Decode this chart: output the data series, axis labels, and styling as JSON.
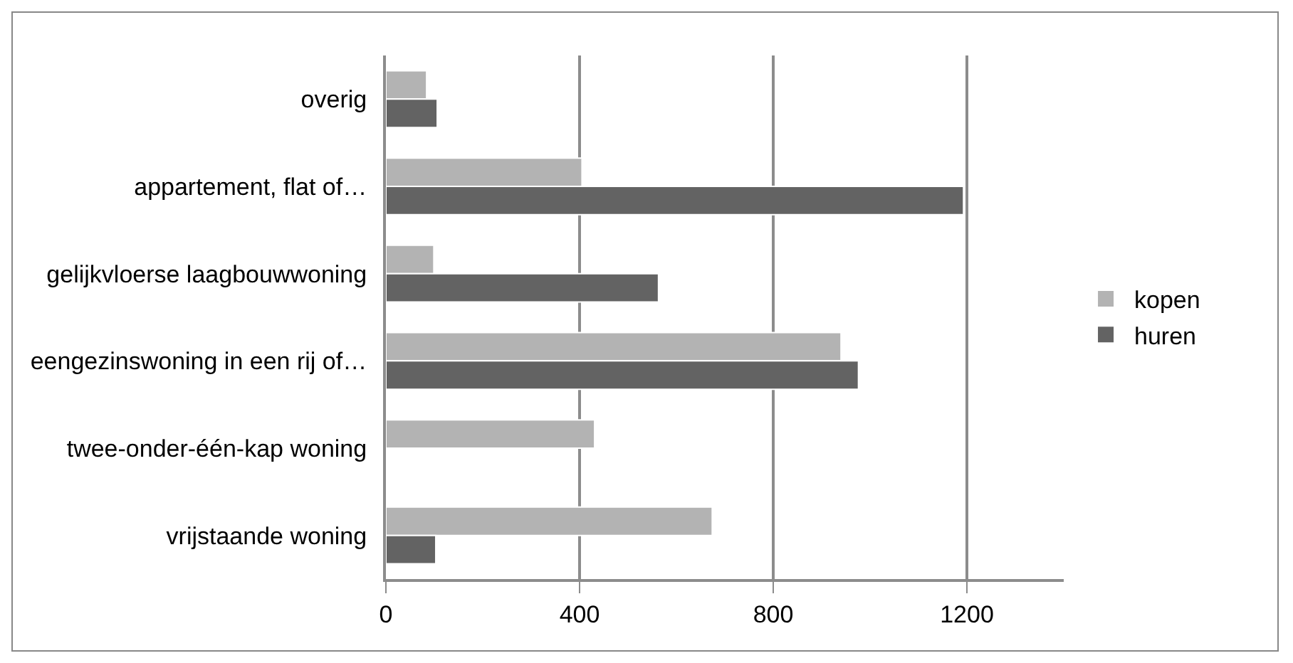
{
  "chart_data": {
    "type": "bar",
    "orientation": "horizontal",
    "categories": [
      "overig",
      "appartement, flat of…",
      "gelijkvloerse laagbouwwoning",
      "eengezinswoning in een rij of…",
      "twee-onder-één-kap woning",
      "vrijstaande woning"
    ],
    "series": [
      {
        "name": "kopen",
        "color": "#b3b3b3",
        "values": [
          84,
          405,
          99,
          940,
          431,
          674
        ]
      },
      {
        "name": "huren",
        "color": "#636363",
        "values": [
          106,
          1193,
          563,
          976,
          null,
          103
        ]
      }
    ],
    "xlim": [
      0,
      1400
    ],
    "xticks": [
      0,
      400,
      800,
      1200
    ],
    "grid": "x",
    "legend": "right"
  }
}
